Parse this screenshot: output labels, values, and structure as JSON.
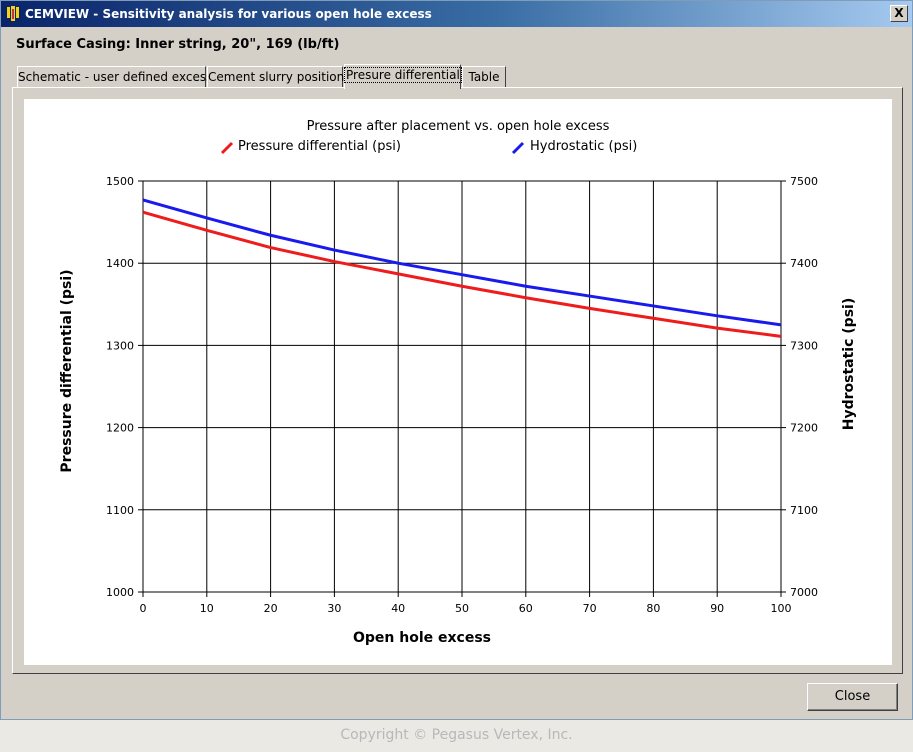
{
  "window": {
    "title": "CEMVIEW - Sensitivity analysis for various open hole excess",
    "close_glyph": "X"
  },
  "subtitle": "Surface Casing: Inner string, 20\", 169 (lb/ft)",
  "tabs": [
    {
      "label": "Schematic - user defined excess",
      "active": false
    },
    {
      "label": "Cement slurry positions",
      "active": false
    },
    {
      "label": "Presure differential",
      "active": true
    },
    {
      "label": "Table",
      "active": false
    }
  ],
  "buttons": {
    "close": "Close"
  },
  "footer": {
    "copyright": "Copyright © Pegasus Vertex, Inc."
  },
  "colors": {
    "pressure": "#ee1c1c",
    "hydrostatic": "#1a1aee",
    "titlebar": "#0a246a"
  },
  "chart_data": {
    "type": "line",
    "title": "Pressure after placement vs. open hole excess",
    "xlabel": "Open hole excess",
    "ylabel_left": "Pressure differential (psi)",
    "ylabel_right": "Hydrostatic (psi)",
    "xlim": [
      0,
      100
    ],
    "ylim_left": [
      1000,
      1500
    ],
    "ylim_right": [
      7000,
      7500
    ],
    "x_ticks": [
      "0",
      "10",
      "20",
      "30",
      "40",
      "50",
      "60",
      "70",
      "80",
      "90",
      "100"
    ],
    "y_ticks_left": [
      "1000",
      "1100",
      "1200",
      "1300",
      "1400",
      "1500"
    ],
    "y_ticks_right": [
      "7000",
      "7100",
      "7200",
      "7300",
      "7400",
      "7500"
    ],
    "grid": true,
    "legend_position": "top",
    "series": [
      {
        "name": "Pressure differential (psi)",
        "axis": "left",
        "color": "#ee1c1c",
        "x": [
          0,
          10,
          20,
          30,
          40,
          50,
          60,
          70,
          80,
          90,
          100
        ],
        "y": [
          1462,
          1440,
          1419,
          1402,
          1387,
          1372,
          1358,
          1345,
          1333,
          1321,
          1311
        ]
      },
      {
        "name": "Hydrostatic (psi)",
        "axis": "right",
        "color": "#1a1aee",
        "x": [
          0,
          10,
          20,
          30,
          40,
          50,
          60,
          70,
          80,
          90,
          100
        ],
        "y": [
          7477,
          7455,
          7434,
          7416,
          7400,
          7386,
          7372,
          7360,
          7348,
          7336,
          7325
        ]
      }
    ]
  }
}
